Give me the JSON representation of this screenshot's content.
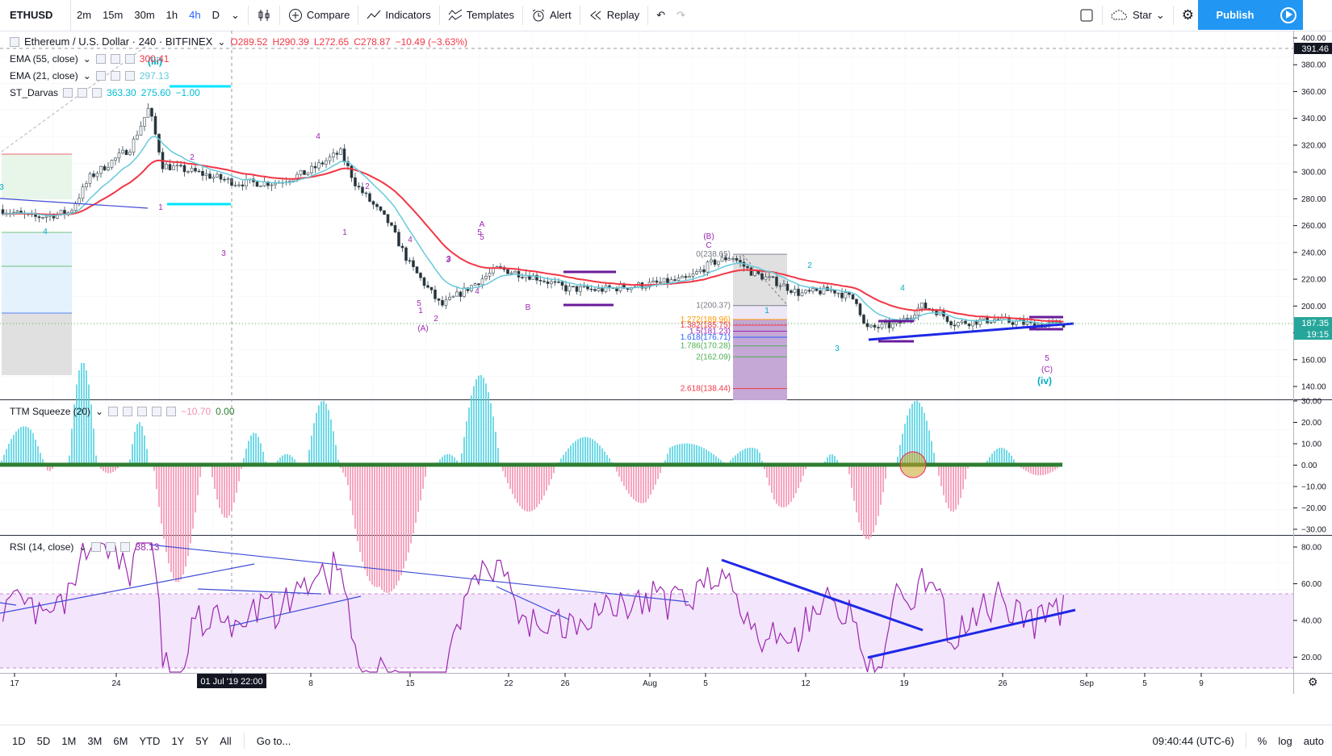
{
  "toolbar": {
    "symbol": "ETHUSD",
    "intervals": [
      "2m",
      "15m",
      "30m",
      "1h",
      "4h",
      "D"
    ],
    "active_interval": "4h",
    "compare": "Compare",
    "indicators": "Indicators",
    "templates": "Templates",
    "alert": "Alert",
    "replay": "Replay",
    "star": "Star",
    "publish": "Publish"
  },
  "legend": {
    "title": "Ethereum / U.S. Dollar · 240 · BITFINEX",
    "open": "O289.52",
    "high": "H290.39",
    "low": "L272.65",
    "close": "C278.87",
    "change": "−10.49 (−3.63%)",
    "ema55_label": "EMA (55, close)",
    "ema55_value": "300.41",
    "ema21_label": "EMA (21, close)",
    "ema21_value": "297.13",
    "darvas_label": "ST_Darvas",
    "darvas_v1": "363.30",
    "darvas_v2": "275.60",
    "darvas_v3": "−1.00",
    "ttm_label": "TTM Squeeze (20)",
    "ttm_v1": "−10.70",
    "ttm_v2": "0.00",
    "rsi_label": "RSI (14, close)",
    "rsi_value": "38.13"
  },
  "price_axis": {
    "ticks": [
      "400.00",
      "380.00",
      "360.00",
      "340.00",
      "320.00",
      "300.00",
      "280.00",
      "260.00",
      "240.00",
      "220.00",
      "200.00",
      "180.00",
      "160.00",
      "140.00"
    ],
    "last_price": "187.35",
    "countdown": "19:15",
    "crosshair_price": "391.46"
  },
  "ttm_axis": {
    "ticks": [
      "30.00",
      "20.00",
      "10.00",
      "0.00",
      "−10.00",
      "−20.00",
      "−30.00"
    ]
  },
  "rsi_axis": {
    "ticks": [
      "80.00",
      "60.00",
      "40.00",
      "20.00"
    ]
  },
  "time_axis": {
    "ticks": [
      "17",
      "24",
      "8",
      "15",
      "22",
      "26",
      "Aug",
      "5",
      "12",
      "19",
      "26",
      "Sep",
      "5",
      "9"
    ],
    "crosshair_time": "01 Jul '19  22:00"
  },
  "fib": {
    "levels": [
      "0(238.65)",
      "1(200.37)",
      "1.272(189.96)",
      "1.382(185.75)",
      "1.5(181.23)",
      "1.618(176.71)",
      "1.786(170.28)",
      "2(162.09)",
      "2.618(138.44)"
    ],
    "colors": [
      "#787b86",
      "#787b86",
      "#ff9800",
      "#f23645",
      "#9c27b0",
      "#2962ff",
      "#4caf50",
      "#4caf50",
      "#f23645"
    ]
  },
  "waves": {
    "labels_purple": [
      "2",
      "1",
      "3",
      "4",
      "1",
      "2",
      "3",
      "4",
      "5",
      "1",
      "2",
      "3",
      "4",
      "5",
      "(A)",
      "A",
      "5",
      "B",
      "(B)",
      "C",
      "5",
      "(C)"
    ],
    "labels_teal": [
      "(iii)",
      "1",
      "2",
      "3",
      "4",
      "(iv)",
      "3",
      "4"
    ]
  },
  "bottombar": {
    "ranges": [
      "1D",
      "5D",
      "1M",
      "3M",
      "6M",
      "YTD",
      "1Y",
      "5Y",
      "All"
    ],
    "goto": "Go to...",
    "time": "09:40:44 (UTC-6)",
    "pct": "%",
    "log": "log",
    "auto": "auto"
  },
  "colors": {
    "ema55": "#f23645",
    "ema21": "#67c9da",
    "accent": "#2196f3",
    "rsi_band": "#f1e0fb",
    "squeeze_pos": "#4dd0e1",
    "squeeze_neg": "#f48fb1",
    "wave_purple": "#9c27b0",
    "wave_teal": "#00acc1"
  }
}
